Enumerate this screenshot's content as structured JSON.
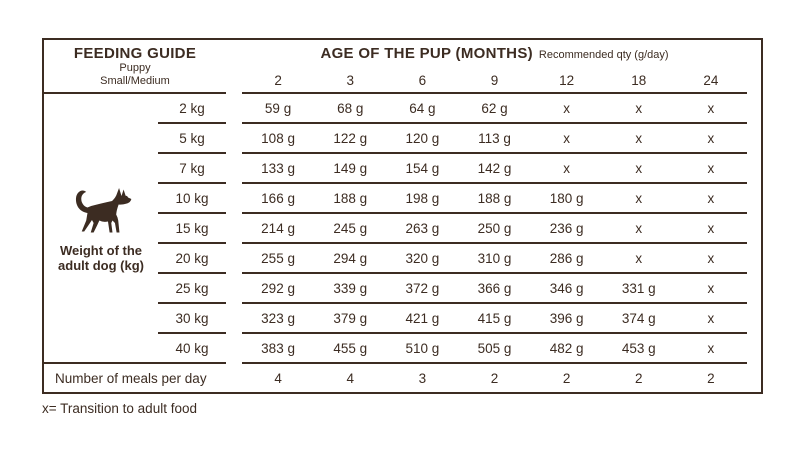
{
  "colors": {
    "ink": "#3c2c22",
    "paper": "#ffffff"
  },
  "table": {
    "title": "FEEDING GUIDE",
    "subtitle1": "Puppy",
    "subtitle2": "Small/Medium",
    "age_header": "AGE OF THE PUP (MONTHS)",
    "age_note": "Recommended qty (g/day)",
    "weight_label1": "Weight of the",
    "weight_label2": "adult dog (kg)"
  },
  "chart_data": {
    "type": "table",
    "title": "FEEDING GUIDE",
    "subtitle": "Puppy Small/Medium",
    "columns_title": "AGE OF THE PUP (MONTHS)",
    "units": "Recommended qty (g/day)",
    "columns": [
      "2",
      "3",
      "6",
      "9",
      "12",
      "18",
      "24"
    ],
    "rows_title": "Weight of the adult dog (kg)",
    "rows": [
      {
        "weight": "2 kg",
        "values": [
          "59 g",
          "68 g",
          "64 g",
          "62 g",
          "x",
          "x",
          "x"
        ]
      },
      {
        "weight": "5 kg",
        "values": [
          "108 g",
          "122 g",
          "120 g",
          "113 g",
          "x",
          "x",
          "x"
        ]
      },
      {
        "weight": "7 kg",
        "values": [
          "133 g",
          "149 g",
          "154 g",
          "142 g",
          "x",
          "x",
          "x"
        ]
      },
      {
        "weight": "10 kg",
        "values": [
          "166 g",
          "188 g",
          "198 g",
          "188 g",
          "180 g",
          "x",
          "x"
        ]
      },
      {
        "weight": "15 kg",
        "values": [
          "214 g",
          "245 g",
          "263 g",
          "250 g",
          "236 g",
          "x",
          "x"
        ]
      },
      {
        "weight": "20 kg",
        "values": [
          "255 g",
          "294 g",
          "320 g",
          "310 g",
          "286 g",
          "x",
          "x"
        ]
      },
      {
        "weight": "25 kg",
        "values": [
          "292 g",
          "339 g",
          "372 g",
          "366 g",
          "346 g",
          "331 g",
          "x"
        ]
      },
      {
        "weight": "30 kg",
        "values": [
          "323 g",
          "379 g",
          "421 g",
          "415 g",
          "396 g",
          "374 g",
          "x"
        ]
      },
      {
        "weight": "40 kg",
        "values": [
          "383 g",
          "455 g",
          "510 g",
          "505 g",
          "482 g",
          "453 g",
          "x"
        ]
      }
    ],
    "meals": {
      "label": "Number of meals per day",
      "values": [
        "4",
        "4",
        "3",
        "2",
        "2",
        "2",
        "2"
      ]
    },
    "footnote": "x= Transition to adult food"
  }
}
